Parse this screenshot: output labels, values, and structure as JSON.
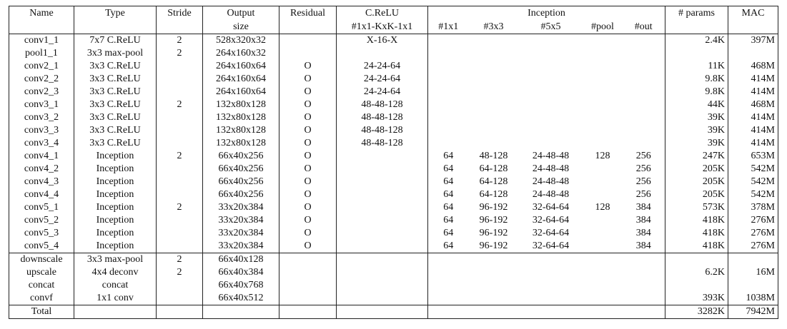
{
  "table": {
    "header": {
      "name": "Name",
      "type": "Type",
      "stride": "Stride",
      "output": "Output",
      "output_sub": "size",
      "residual": "Residual",
      "crelu": "C.ReLU",
      "crelu_sub": "#1x1-KxK-1x1",
      "inception": "Inception",
      "inception_sub": [
        "#1x1",
        "#3x3",
        "#5x5",
        "#pool",
        "#out"
      ],
      "params": "# params",
      "mac": "MAC"
    },
    "rows": [
      [
        "conv1_1",
        "7x7 C.ReLU",
        "2",
        "528x320x32",
        null,
        "X-16-X",
        null,
        null,
        null,
        null,
        null,
        "2.4K",
        "397M"
      ],
      [
        "pool1_1",
        "3x3 max-pool",
        "2",
        "264x160x32",
        null,
        null,
        null,
        null,
        null,
        null,
        null,
        null,
        null
      ],
      [
        "conv2_1",
        "3x3 C.ReLU",
        null,
        "264x160x64",
        "O",
        "24-24-64",
        null,
        null,
        null,
        null,
        null,
        "11K",
        "468M"
      ],
      [
        "conv2_2",
        "3x3 C.ReLU",
        null,
        "264x160x64",
        "O",
        "24-24-64",
        null,
        null,
        null,
        null,
        null,
        "9.8K",
        "414M"
      ],
      [
        "conv2_3",
        "3x3 C.ReLU",
        null,
        "264x160x64",
        "O",
        "24-24-64",
        null,
        null,
        null,
        null,
        null,
        "9.8K",
        "414M"
      ],
      [
        "conv3_1",
        "3x3 C.ReLU",
        "2",
        "132x80x128",
        "O",
        "48-48-128",
        null,
        null,
        null,
        null,
        null,
        "44K",
        "468M"
      ],
      [
        "conv3_2",
        "3x3 C.ReLU",
        null,
        "132x80x128",
        "O",
        "48-48-128",
        null,
        null,
        null,
        null,
        null,
        "39K",
        "414M"
      ],
      [
        "conv3_3",
        "3x3 C.ReLU",
        null,
        "132x80x128",
        "O",
        "48-48-128",
        null,
        null,
        null,
        null,
        null,
        "39K",
        "414M"
      ],
      [
        "conv3_4",
        "3x3 C.ReLU",
        null,
        "132x80x128",
        "O",
        "48-48-128",
        null,
        null,
        null,
        null,
        null,
        "39K",
        "414M"
      ],
      [
        "conv4_1",
        "Inception",
        "2",
        "66x40x256",
        "O",
        null,
        "64",
        "48-128",
        "24-48-48",
        "128",
        "256",
        "247K",
        "653M"
      ],
      [
        "conv4_2",
        "Inception",
        null,
        "66x40x256",
        "O",
        null,
        "64",
        "64-128",
        "24-48-48",
        null,
        "256",
        "205K",
        "542M"
      ],
      [
        "conv4_3",
        "Inception",
        null,
        "66x40x256",
        "O",
        null,
        "64",
        "64-128",
        "24-48-48",
        null,
        "256",
        "205K",
        "542M"
      ],
      [
        "conv4_4",
        "Inception",
        null,
        "66x40x256",
        "O",
        null,
        "64",
        "64-128",
        "24-48-48",
        null,
        "256",
        "205K",
        "542M"
      ],
      [
        "conv5_1",
        "Inception",
        "2",
        "33x20x384",
        "O",
        null,
        "64",
        "96-192",
        "32-64-64",
        "128",
        "384",
        "573K",
        "378M"
      ],
      [
        "conv5_2",
        "Inception",
        null,
        "33x20x384",
        "O",
        null,
        "64",
        "96-192",
        "32-64-64",
        null,
        "384",
        "418K",
        "276M"
      ],
      [
        "conv5_3",
        "Inception",
        null,
        "33x20x384",
        "O",
        null,
        "64",
        "96-192",
        "32-64-64",
        null,
        "384",
        "418K",
        "276M"
      ],
      [
        "conv5_4",
        "Inception",
        null,
        "33x20x384",
        "O",
        null,
        "64",
        "96-192",
        "32-64-64",
        null,
        "384",
        "418K",
        "276M"
      ],
      [
        "downscale",
        "3x3 max-pool",
        "2",
        "66x40x128",
        null,
        null,
        null,
        null,
        null,
        null,
        null,
        null,
        null
      ],
      [
        "upscale",
        "4x4 deconv",
        "2",
        "66x40x384",
        null,
        null,
        null,
        null,
        null,
        null,
        null,
        "6.2K",
        "16M"
      ],
      [
        "concat",
        "concat",
        null,
        "66x40x768",
        null,
        null,
        null,
        null,
        null,
        null,
        null,
        null,
        null
      ],
      [
        "convf",
        "1x1 conv",
        null,
        "66x40x512",
        null,
        null,
        null,
        null,
        null,
        null,
        null,
        "393K",
        "1038M"
      ],
      [
        "Total",
        null,
        null,
        null,
        null,
        null,
        null,
        null,
        null,
        null,
        null,
        "3282K",
        "7942M"
      ]
    ]
  }
}
